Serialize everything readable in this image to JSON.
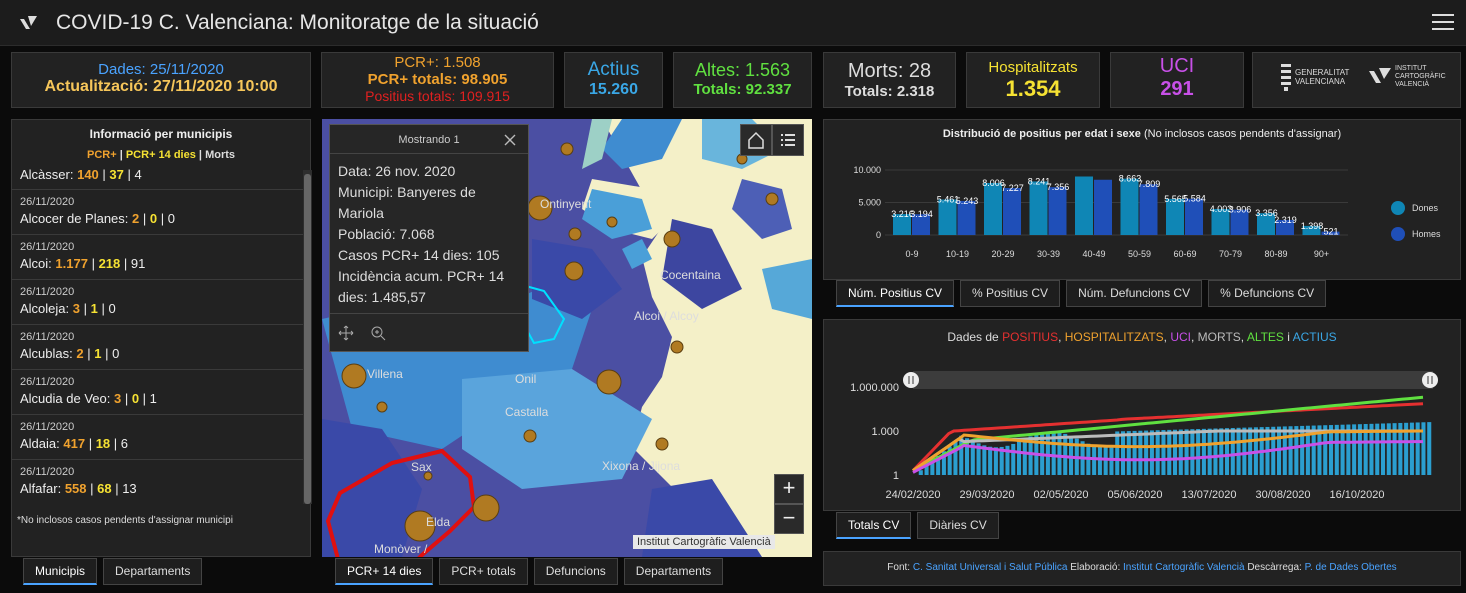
{
  "header": {
    "title": "COVID-19 C. Valenciana: Monitoratge de la situació"
  },
  "stats": {
    "dades": "Dades: 25/11/2020",
    "actualitzacio": "Actualització: 27/11/2020 10:00",
    "pcr": "PCR+: 1.508",
    "pcr_totals": "PCR+ totals: 98.905",
    "positius_totals": "Positius totals: 109.915",
    "actius_label": "Actius",
    "actius_value": "15.260",
    "altes": "Altes: 1.563",
    "altes_totals": "Totals: 92.337",
    "morts": "Morts: 28",
    "morts_totals": "Totals: 2.318",
    "hosp_label": "Hospitalitzats",
    "hosp_value": "1.354",
    "uci_label": "UCI",
    "uci_value": "291"
  },
  "logos": {
    "gv": "GENERALITAT VALENCIANA",
    "icv": "INSTITUT CARTOGRÀFIC VALENCIÀ"
  },
  "municipis": {
    "title": "Informació per municipis",
    "legend_a": "PCR+",
    "legend_sep": " | ",
    "legend_b": "PCR+ 14 dies",
    "legend_c": "Morts",
    "first": {
      "name": "Alcàsser:",
      "a": "140",
      "b": "37",
      "c": "4"
    },
    "rows": [
      {
        "date": "26/11/2020",
        "name": "Alcocer de Planes:",
        "a": "2",
        "b": "0",
        "c": "0"
      },
      {
        "date": "26/11/2020",
        "name": "Alcoi:",
        "a": "1.177",
        "b": "218",
        "c": "91"
      },
      {
        "date": "26/11/2020",
        "name": "Alcoleja:",
        "a": "3",
        "b": "1",
        "c": "0"
      },
      {
        "date": "26/11/2020",
        "name": "Alcublas:",
        "a": "2",
        "b": "1",
        "c": "0"
      },
      {
        "date": "26/11/2020",
        "name": "Alcudia de Veo:",
        "a": "3",
        "b": "0",
        "c": "1"
      },
      {
        "date": "26/11/2020",
        "name": "Aldaia:",
        "a": "417",
        "b": "18",
        "c": "6"
      },
      {
        "date": "26/11/2020",
        "name": "Alfafar:",
        "a": "558",
        "b": "68",
        "c": "13"
      }
    ],
    "note": "*No inclosos casos pendents d'assignar municipi",
    "tabs": [
      "Municipis",
      "Departaments"
    ]
  },
  "map": {
    "popup_header": "Mostrando 1",
    "popup_lines": [
      "Data: 26 nov. 2020",
      "Municipi: Banyeres de Mariola",
      "Població: 7.068",
      "Casos PCR+ 14 dies: 105",
      "Incidència acum. PCR+ 14 dies: 1.485,57"
    ],
    "places": [
      "Ontinyent",
      "Cocentaina",
      "Alcoi / Alcoy",
      "Villena",
      "Onil",
      "Castalla",
      "Sax",
      "Xixona / Jijona",
      "Elda",
      "Monòver /"
    ],
    "attribution": "Institut Cartogràfic Valencià",
    "zoom_in": "+",
    "zoom_out": "−",
    "tabs": [
      "PCR+ 14 dies",
      "PCR+ totals",
      "Defuncions",
      "Departaments"
    ]
  },
  "age_chart": {
    "title": "Distribució de positius per edat i sexe",
    "subtitle": "(No inclosos casos pendents d'assignar)",
    "tabs": [
      "Núm. Positius CV",
      "% Positius CV",
      "Núm. Defuncions CV",
      "% Defuncions CV"
    ]
  },
  "timeline": {
    "title_prefix": "Dades de ",
    "t1": "POSITIUS",
    "s1": ", ",
    "t2": "HOSPITALITZATS",
    "s2": ", ",
    "t3": "UCI",
    "s3": ", ",
    "t4": "MORTS",
    "s4": ", ",
    "t5": "ALTES",
    "s5": " i ",
    "t6": "ACTIUS",
    "tabs": [
      "Totals CV",
      "Diàries CV"
    ]
  },
  "footer": {
    "font": "Font:",
    "f1": "C. Sanitat Universal i Salut Pública",
    "elab": "Elaboració:",
    "f2": "Institut Cartogràfic Valencià",
    "desc": "Descàrrega:",
    "f3": "P. de Dades Obertes"
  },
  "chart_data": [
    {
      "type": "bar",
      "title": "Distribució de positius per edat i sexe",
      "categories": [
        "0-9",
        "10-19",
        "20-29",
        "30-39",
        "40-49",
        "50-59",
        "60-69",
        "70-79",
        "80-89",
        "90+"
      ],
      "series": [
        {
          "name": "Dones",
          "values": [
            3216,
            5461,
            8006,
            8241,
            9000,
            8663,
            5565,
            4003,
            3356,
            1398
          ],
          "color": "#0f86b5"
        },
        {
          "name": "Homes",
          "values": [
            3194,
            5243,
            7227,
            7356,
            8500,
            7809,
            5584,
            3906,
            2319,
            521
          ],
          "color": "#1f4fb8"
        }
      ],
      "value_labels": [
        "3.216",
        "3.194",
        "5.461",
        "5.243",
        "8.006",
        "7.227",
        "8.241",
        "7.356",
        "",
        "",
        "8.663",
        "7.809",
        "5.565",
        "5.584",
        "4.003",
        "3.906",
        "3.356",
        "2.319",
        "1.398",
        "521"
      ],
      "ylim": [
        0,
        10000
      ],
      "yticks": [
        "0",
        "5.000",
        "10.000"
      ],
      "legend": "right"
    },
    {
      "type": "line",
      "title": "Dades de POSITIUS, HOSPITALITZATS, UCI, MORTS, ALTES i ACTIUS",
      "yscale": "log",
      "yticks": [
        "1",
        "1.000",
        "1.000.000"
      ],
      "xticks": [
        "24/02/2020",
        "29/03/2020",
        "02/05/2020",
        "05/06/2020",
        "13/07/2020",
        "30/08/2020",
        "16/10/2020"
      ],
      "series": [
        {
          "name": "POSITIUS",
          "color": "#e53030"
        },
        {
          "name": "HOSPITALITZATS",
          "color": "#f0a22e"
        },
        {
          "name": "UCI",
          "color": "#c850e8"
        },
        {
          "name": "MORTS",
          "color": "#bbbbbb"
        },
        {
          "name": "ALTES",
          "color": "#60e040"
        },
        {
          "name": "ACTIUS",
          "color": "#3aa7e6"
        }
      ]
    }
  ]
}
